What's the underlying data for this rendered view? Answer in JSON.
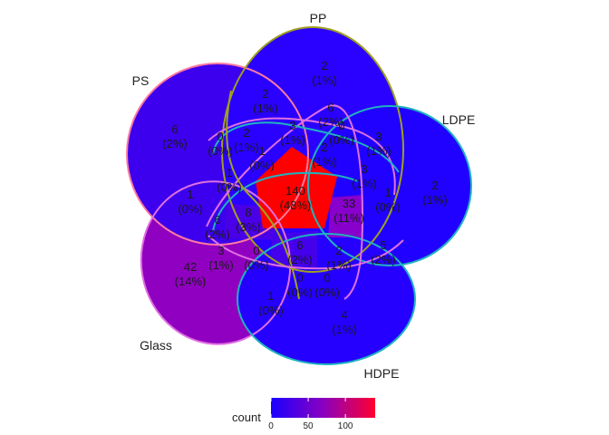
{
  "sets": [
    {
      "key": "pp",
      "label": "PP",
      "color": "#a0a020"
    },
    {
      "key": "ldpe",
      "label": "LDPE",
      "color": "#20b2c0"
    },
    {
      "key": "hdpe",
      "label": "HDPE",
      "color": "#20b2c0"
    },
    {
      "key": "glass",
      "label": "Glass",
      "color": "#e070e0"
    },
    {
      "key": "ps",
      "label": "PS",
      "color": "#ff7aa0"
    }
  ],
  "regions": [
    {
      "key": "pp_only",
      "count": "2",
      "pct": "(1%)",
      "fill": "#2a00ff"
    },
    {
      "key": "ps_only",
      "count": "6",
      "pct": "(2%)",
      "fill": "#3a00f0"
    },
    {
      "key": "ldpe_only",
      "count": "2",
      "pct": "(1%)",
      "fill": "#2200ff"
    },
    {
      "key": "glass_only",
      "count": "42",
      "pct": "(14%)",
      "fill": "#8a00c8"
    },
    {
      "key": "hdpe_only",
      "count": "4",
      "pct": "(1%)",
      "fill": "#2a00ff"
    },
    {
      "key": "all_five",
      "count": "140",
      "pct": "(48%)",
      "fill": "#ff0000"
    },
    {
      "key": "r_ps_pp",
      "count": "2",
      "pct": "(1%)"
    },
    {
      "key": "r_pp_a",
      "count": "3",
      "pct": "(1%)"
    },
    {
      "key": "r_pp_b",
      "count": "6",
      "pct": "(2%)"
    },
    {
      "key": "r_pp_c",
      "count": "0",
      "pct": "(0%)"
    },
    {
      "key": "r_pp_ldpe",
      "count": "3",
      "pct": "(1%)"
    },
    {
      "key": "r_ps_a",
      "count": "0",
      "pct": "(0%)"
    },
    {
      "key": "r_ps_b",
      "count": "2",
      "pct": "(1%)"
    },
    {
      "key": "r_mid_a",
      "count": "1",
      "pct": "(0%)"
    },
    {
      "key": "r_mid_b",
      "count": "2",
      "pct": "(1%)"
    },
    {
      "key": "r_ps_glass",
      "count": "1",
      "pct": "(0%)"
    },
    {
      "key": "r_mid_c",
      "count": "1",
      "pct": "(0%)"
    },
    {
      "key": "r_ldpe_a",
      "count": "3",
      "pct": "(1%)"
    },
    {
      "key": "r_ldpe_b",
      "count": "1",
      "pct": "(0%)"
    },
    {
      "key": "r_33",
      "count": "33",
      "pct": "(11%)"
    },
    {
      "key": "r_8",
      "count": "8",
      "pct": "(3%)"
    },
    {
      "key": "r_glass_a",
      "count": "6",
      "pct": "(2%)"
    },
    {
      "key": "r_glass_b",
      "count": "3",
      "pct": "(1%)"
    },
    {
      "key": "r_mid_d",
      "count": "0",
      "pct": "(0%)"
    },
    {
      "key": "r_mid_e",
      "count": "6",
      "pct": "(2%)"
    },
    {
      "key": "r_mid_f",
      "count": "2",
      "pct": "(1%)"
    },
    {
      "key": "r_ldpe_hdpe",
      "count": "5",
      "pct": "(2%)"
    },
    {
      "key": "r_glass_hdpe",
      "count": "1",
      "pct": "(0%)"
    },
    {
      "key": "r_low_a",
      "count": "0",
      "pct": "(0%)"
    },
    {
      "key": "r_low_b",
      "count": "0",
      "pct": "(0%)"
    }
  ],
  "legend": {
    "title": "count",
    "ticks": [
      "0",
      "50",
      "100"
    ],
    "tick_values": [
      0,
      50,
      100
    ],
    "max": 140,
    "color_low": "#1a00ff",
    "color_high": "#ff0030"
  }
}
